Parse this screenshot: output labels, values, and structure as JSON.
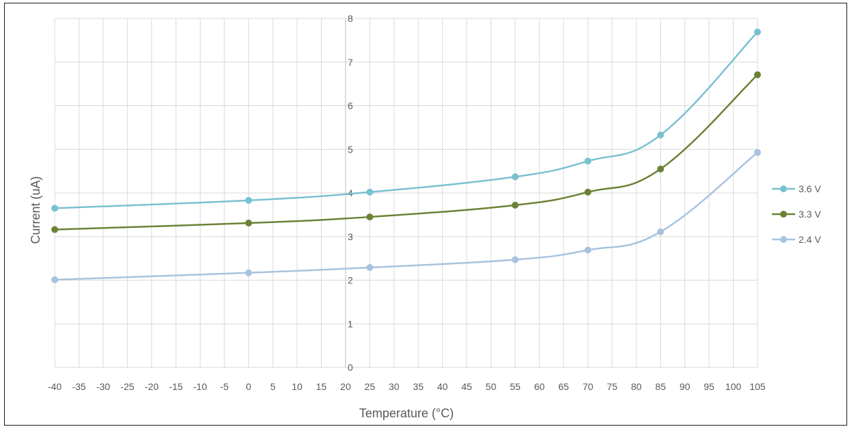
{
  "chart_data": {
    "type": "line",
    "title": "",
    "xlabel": "Temperature  (°C)",
    "ylabel": "Current (uA)",
    "xlim": [
      -40,
      105
    ],
    "ylim": [
      0,
      8
    ],
    "x_ticks": [
      -40,
      -35,
      -30,
      -25,
      -20,
      -15,
      -10,
      -5,
      0,
      5,
      10,
      15,
      20,
      25,
      30,
      35,
      40,
      45,
      50,
      55,
      60,
      65,
      70,
      75,
      80,
      85,
      90,
      95,
      100,
      105
    ],
    "y_ticks": [
      0,
      1,
      2,
      3,
      4,
      5,
      6,
      7,
      8
    ],
    "grid": true,
    "smooth": true,
    "legend_position": "right",
    "x": [
      -40,
      0,
      25,
      55,
      70,
      85,
      105
    ],
    "series": [
      {
        "name": "3.6 V",
        "color": "#79c1d1",
        "values": [
          3.65,
          3.83,
          4.02,
          4.37,
          4.73,
          5.33,
          7.69
        ]
      },
      {
        "name": "3.3 V",
        "color": "#6b8235",
        "values": [
          3.16,
          3.31,
          3.45,
          3.72,
          4.02,
          4.55,
          6.71
        ]
      },
      {
        "name": "2.4 V",
        "color": "#a8c3de",
        "values": [
          2.01,
          2.17,
          2.29,
          2.47,
          2.69,
          3.11,
          4.93
        ]
      }
    ],
    "colors": {
      "grid": "#d9d9d9",
      "axis": "#bfbfbf",
      "text": "#595959"
    }
  }
}
